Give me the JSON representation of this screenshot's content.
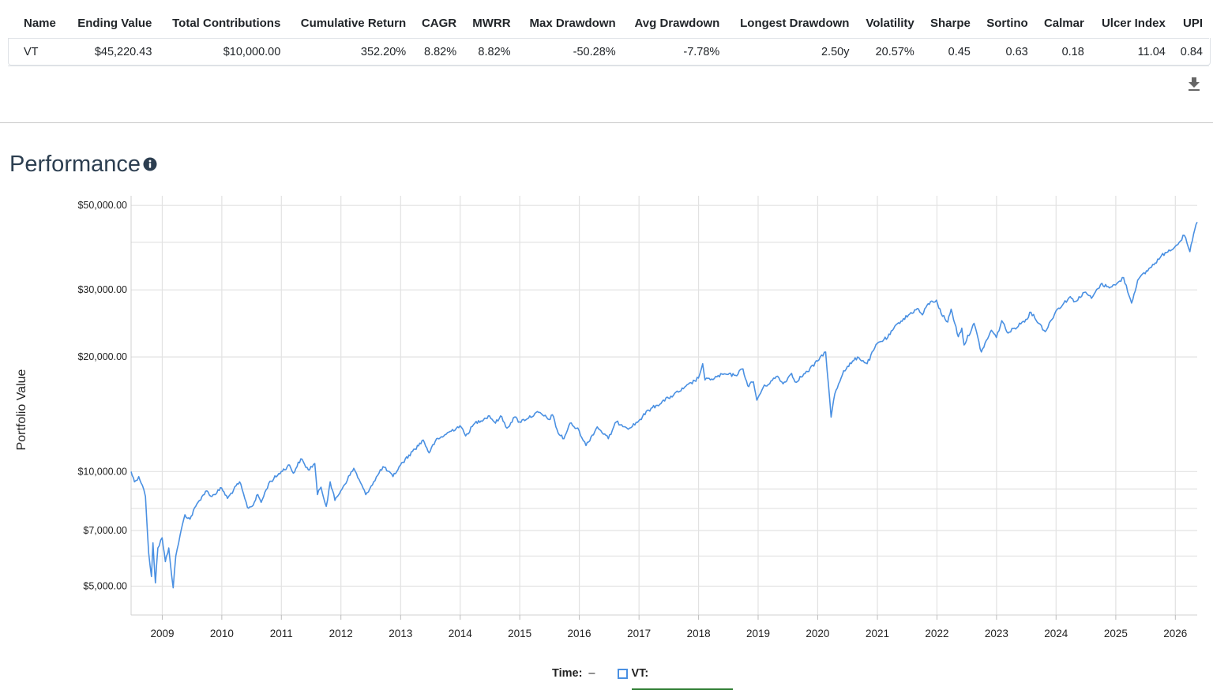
{
  "metrics_table": {
    "headers": [
      "Name",
      "Ending Value",
      "Total Contributions",
      "Cumulative Return",
      "CAGR",
      "MWRR",
      "Max Drawdown",
      "Avg Drawdown",
      "Longest Drawdown",
      "Volatility",
      "Sharpe",
      "Sortino",
      "Calmar",
      "Ulcer Index",
      "UPI"
    ],
    "rows": [
      [
        "VT",
        "$45,220.43",
        "$10,000.00",
        "352.20%",
        "8.82%",
        "8.82%",
        "-50.28%",
        "-7.78%",
        "2.50y",
        "20.57%",
        "0.45",
        "0.63",
        "0.18",
        "11.04",
        "0.84"
      ]
    ]
  },
  "download_icon": "download-icon",
  "section": {
    "title": "Performance",
    "info_icon": "info-icon"
  },
  "legend": {
    "time_label": "Time:",
    "time_value": "–",
    "series_label": "VT:"
  },
  "colors": {
    "line": "#4a90e2",
    "grid": "#e2e2e2",
    "green_indicator": "#2e7d32"
  },
  "chart_data": {
    "type": "line",
    "title": "",
    "xlabel": "",
    "ylabel": "Portfolio Value",
    "y_scale": "log",
    "grid": true,
    "xlim": [
      "2008-06-24",
      "2026-05-15"
    ],
    "ylim": [
      4200,
      53000
    ],
    "y_ticks": [
      {
        "value": 50000,
        "label": "$50,000.00"
      },
      {
        "value": 30000,
        "label": "$30,000.00"
      },
      {
        "value": 20000,
        "label": "$20,000.00"
      },
      {
        "value": 10000,
        "label": "$10,000.00"
      },
      {
        "value": 7000,
        "label": "$7,000.00"
      },
      {
        "value": 5000,
        "label": "$5,000.00"
      }
    ],
    "y_minor_grid": [
      4000,
      6000,
      8000,
      9000,
      40000
    ],
    "x_ticks": [
      "2009",
      "2010",
      "2011",
      "2012",
      "2013",
      "2014",
      "2015",
      "2016",
      "2017",
      "2018",
      "2019",
      "2020",
      "2021",
      "2022",
      "2023",
      "2024",
      "2025",
      "2026"
    ],
    "series": [
      {
        "name": "VT",
        "color": "#4a90e2",
        "points": [
          [
            "2008-06-24",
            10000
          ],
          [
            "2008-07-15",
            9400
          ],
          [
            "2008-08-10",
            9700
          ],
          [
            "2008-09-01",
            9200
          ],
          [
            "2008-09-20",
            8600
          ],
          [
            "2008-10-10",
            6100
          ],
          [
            "2008-10-27",
            5300
          ],
          [
            "2008-11-05",
            6500
          ],
          [
            "2008-11-20",
            5100
          ],
          [
            "2008-12-05",
            6300
          ],
          [
            "2008-12-31",
            6700
          ],
          [
            "2009-01-20",
            5800
          ],
          [
            "2009-02-10",
            6300
          ],
          [
            "2009-03-09",
            4950
          ],
          [
            "2009-03-25",
            6000
          ],
          [
            "2009-04-20",
            6800
          ],
          [
            "2009-05-20",
            7700
          ],
          [
            "2009-06-20",
            7500
          ],
          [
            "2009-07-25",
            8100
          ],
          [
            "2009-09-01",
            8600
          ],
          [
            "2009-10-01",
            8900
          ],
          [
            "2009-11-01",
            8600
          ],
          [
            "2009-12-31",
            9050
          ],
          [
            "2010-02-05",
            8500
          ],
          [
            "2010-04-20",
            9400
          ],
          [
            "2010-06-07",
            8050
          ],
          [
            "2010-07-05",
            8100
          ],
          [
            "2010-08-10",
            8700
          ],
          [
            "2010-08-30",
            8300
          ],
          [
            "2010-10-15",
            9300
          ],
          [
            "2010-12-31",
            10000
          ],
          [
            "2011-02-20",
            10400
          ],
          [
            "2011-03-15",
            9900
          ],
          [
            "2011-04-30",
            10800
          ],
          [
            "2011-06-15",
            10100
          ],
          [
            "2011-07-25",
            10500
          ],
          [
            "2011-08-10",
            8700
          ],
          [
            "2011-09-01",
            9100
          ],
          [
            "2011-10-03",
            8100
          ],
          [
            "2011-10-27",
            9400
          ],
          [
            "2011-11-25",
            8400
          ],
          [
            "2011-12-31",
            8900
          ],
          [
            "2012-03-20",
            10200
          ],
          [
            "2012-06-01",
            8700
          ],
          [
            "2012-07-20",
            9400
          ],
          [
            "2012-09-15",
            10300
          ],
          [
            "2012-11-15",
            9700
          ],
          [
            "2012-12-31",
            10400
          ],
          [
            "2013-03-15",
            11300
          ],
          [
            "2013-05-20",
            12100
          ],
          [
            "2013-06-24",
            11200
          ],
          [
            "2013-08-01",
            12000
          ],
          [
            "2013-09-30",
            12500
          ],
          [
            "2013-12-31",
            13200
          ],
          [
            "2014-02-03",
            12400
          ],
          [
            "2014-04-01",
            13400
          ],
          [
            "2014-06-30",
            14000
          ],
          [
            "2014-08-05",
            13400
          ],
          [
            "2014-09-05",
            14000
          ],
          [
            "2014-10-15",
            13000
          ],
          [
            "2014-11-30",
            13900
          ],
          [
            "2014-12-31",
            13500
          ],
          [
            "2015-04-27",
            14300
          ],
          [
            "2015-06-30",
            13700
          ],
          [
            "2015-07-20",
            14100
          ],
          [
            "2015-08-25",
            12600
          ],
          [
            "2015-09-29",
            12200
          ],
          [
            "2015-11-05",
            13400
          ],
          [
            "2015-12-31",
            12800
          ],
          [
            "2016-02-11",
            11700
          ],
          [
            "2016-04-20",
            13100
          ],
          [
            "2016-06-27",
            12200
          ],
          [
            "2016-08-15",
            13500
          ],
          [
            "2016-11-04",
            13000
          ],
          [
            "2016-12-31",
            13600
          ],
          [
            "2017-03-01",
            14500
          ],
          [
            "2017-06-30",
            15600
          ],
          [
            "2017-09-30",
            16500
          ],
          [
            "2017-12-31",
            17600
          ],
          [
            "2018-01-26",
            19200
          ],
          [
            "2018-02-09",
            17400
          ],
          [
            "2018-03-23",
            17500
          ],
          [
            "2018-06-01",
            18000
          ],
          [
            "2018-08-15",
            17900
          ],
          [
            "2018-09-30",
            18600
          ],
          [
            "2018-10-29",
            16800
          ],
          [
            "2018-12-03",
            17200
          ],
          [
            "2018-12-24",
            15400
          ],
          [
            "2019-01-31",
            16600
          ],
          [
            "2019-04-30",
            17800
          ],
          [
            "2019-06-03",
            17000
          ],
          [
            "2019-07-25",
            18100
          ],
          [
            "2019-08-15",
            17200
          ],
          [
            "2019-10-31",
            18300
          ],
          [
            "2019-12-31",
            19500
          ],
          [
            "2020-01-17",
            20000
          ],
          [
            "2020-02-19",
            20600
          ],
          [
            "2020-03-23",
            13900
          ],
          [
            "2020-04-15",
            16000
          ],
          [
            "2020-06-08",
            18400
          ],
          [
            "2020-09-02",
            20000
          ],
          [
            "2020-10-30",
            19200
          ],
          [
            "2020-12-31",
            21700
          ],
          [
            "2021-03-05",
            22500
          ],
          [
            "2021-05-10",
            24600
          ],
          [
            "2021-09-02",
            26800
          ],
          [
            "2021-10-04",
            25800
          ],
          [
            "2021-11-08",
            27600
          ],
          [
            "2021-12-29",
            28200
          ],
          [
            "2022-01-27",
            26000
          ],
          [
            "2022-03-08",
            24700
          ],
          [
            "2022-03-29",
            26700
          ],
          [
            "2022-05-12",
            22600
          ],
          [
            "2022-06-02",
            23800
          ],
          [
            "2022-06-16",
            21500
          ],
          [
            "2022-08-16",
            24500
          ],
          [
            "2022-09-30",
            20600
          ],
          [
            "2022-11-30",
            23500
          ],
          [
            "2022-12-31",
            22500
          ],
          [
            "2023-02-02",
            24900
          ],
          [
            "2023-03-13",
            23100
          ],
          [
            "2023-06-30",
            25100
          ],
          [
            "2023-07-31",
            26200
          ],
          [
            "2023-10-27",
            23300
          ],
          [
            "2023-12-31",
            26400
          ],
          [
            "2024-03-28",
            28800
          ],
          [
            "2024-04-19",
            27900
          ],
          [
            "2024-06-30",
            29600
          ],
          [
            "2024-08-05",
            28500
          ],
          [
            "2024-09-30",
            31000
          ],
          [
            "2024-11-15",
            30600
          ],
          [
            "2024-12-31",
            30900
          ],
          [
            "2025-02-18",
            32300
          ],
          [
            "2025-04-08",
            27700
          ],
          [
            "2025-05-15",
            31800
          ],
          [
            "2025-07-31",
            34300
          ],
          [
            "2025-10-31",
            37600
          ],
          [
            "2025-12-31",
            39000
          ],
          [
            "2026-02-25",
            41700
          ],
          [
            "2026-03-31",
            37800
          ],
          [
            "2026-04-30",
            43200
          ],
          [
            "2026-05-15",
            45220
          ]
        ]
      }
    ]
  }
}
